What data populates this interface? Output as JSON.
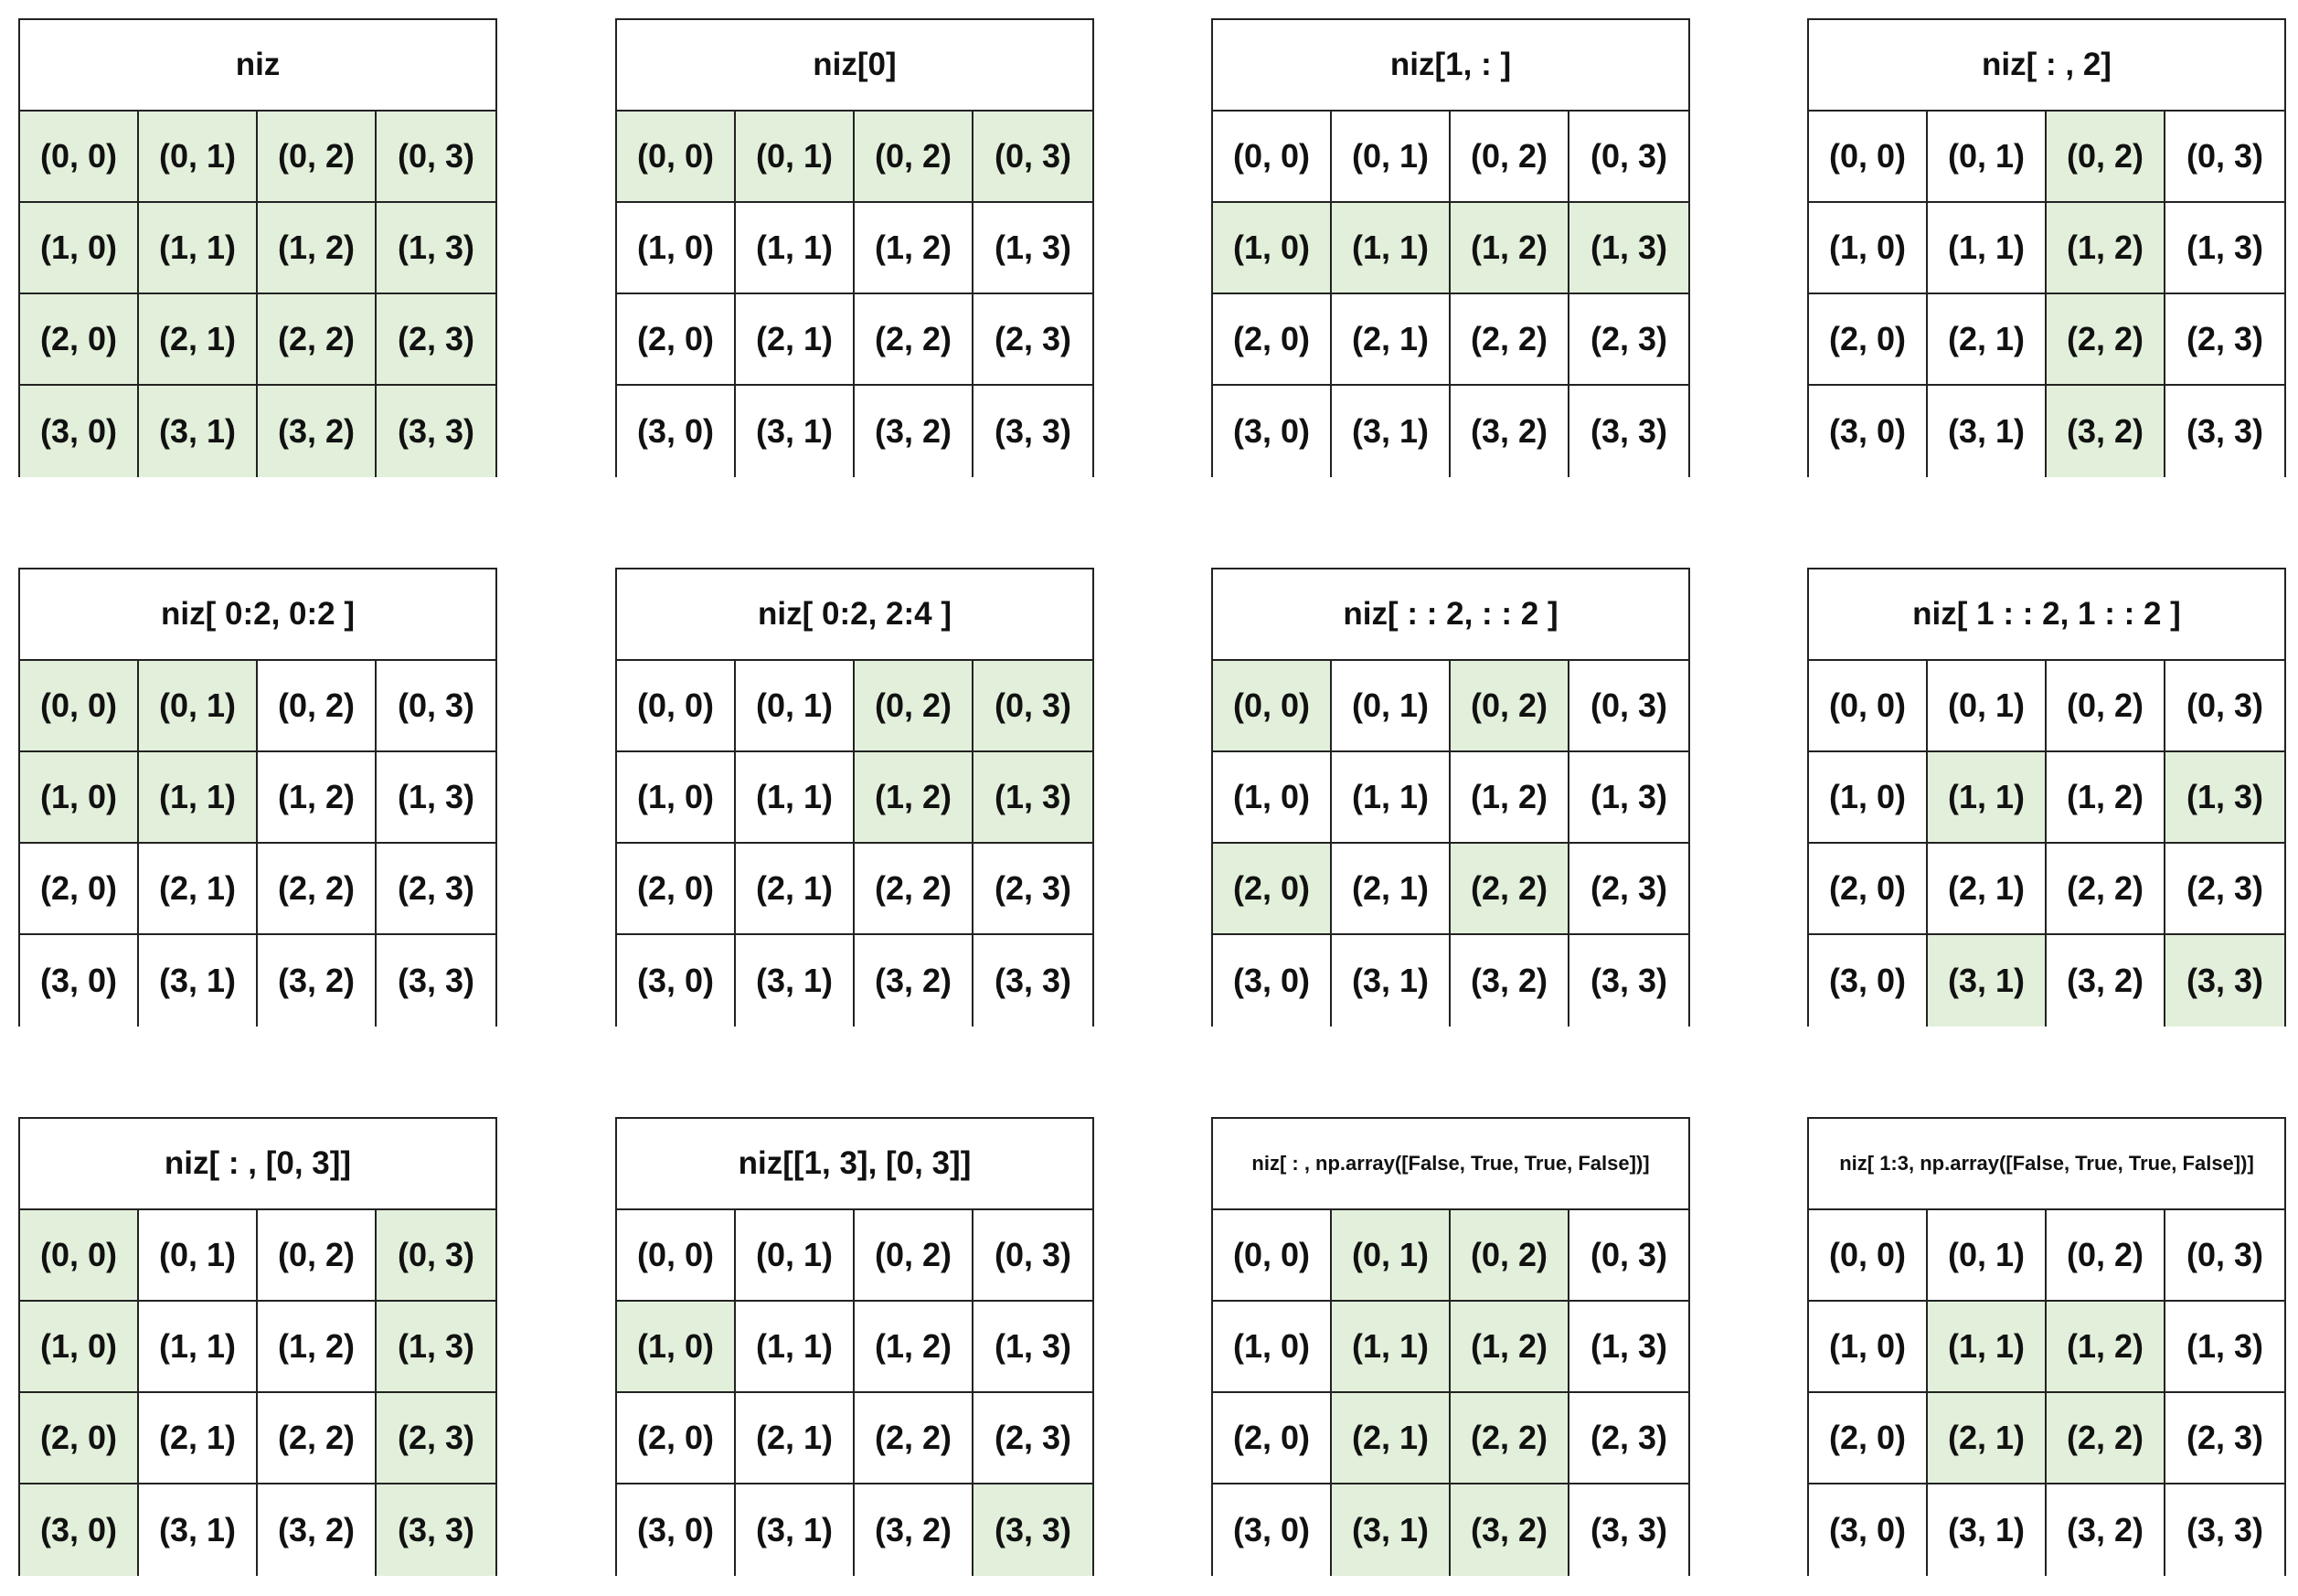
{
  "colors": {
    "highlight": "#e2efda",
    "plain": "#ffffff",
    "border": "#222222",
    "text": "#111111"
  },
  "cell_labels": [
    [
      "(0, 0)",
      "(0, 1)",
      "(0, 2)",
      "(0, 3)"
    ],
    [
      "(1, 0)",
      "(1, 1)",
      "(1, 2)",
      "(1, 3)"
    ],
    [
      "(2, 0)",
      "(2, 1)",
      "(2, 2)",
      "(2, 3)"
    ],
    [
      "(3, 0)",
      "(3, 1)",
      "(3, 2)",
      "(3, 3)"
    ]
  ],
  "panels": [
    {
      "title": "niz",
      "highlight": [
        [
          0,
          0
        ],
        [
          0,
          1
        ],
        [
          0,
          2
        ],
        [
          0,
          3
        ],
        [
          1,
          0
        ],
        [
          1,
          1
        ],
        [
          1,
          2
        ],
        [
          1,
          3
        ],
        [
          2,
          0
        ],
        [
          2,
          1
        ],
        [
          2,
          2
        ],
        [
          2,
          3
        ],
        [
          3,
          0
        ],
        [
          3,
          1
        ],
        [
          3,
          2
        ],
        [
          3,
          3
        ]
      ]
    },
    {
      "title": "niz[0]",
      "highlight": [
        [
          0,
          0
        ],
        [
          0,
          1
        ],
        [
          0,
          2
        ],
        [
          0,
          3
        ]
      ]
    },
    {
      "title": "niz[1, : ]",
      "highlight": [
        [
          1,
          0
        ],
        [
          1,
          1
        ],
        [
          1,
          2
        ],
        [
          1,
          3
        ]
      ]
    },
    {
      "title": "niz[ : , 2]",
      "highlight": [
        [
          0,
          2
        ],
        [
          1,
          2
        ],
        [
          2,
          2
        ],
        [
          3,
          2
        ]
      ]
    },
    {
      "title": "niz[ 0:2, 0:2 ]",
      "highlight": [
        [
          0,
          0
        ],
        [
          0,
          1
        ],
        [
          1,
          0
        ],
        [
          1,
          1
        ]
      ]
    },
    {
      "title": "niz[ 0:2, 2:4 ]",
      "highlight": [
        [
          0,
          2
        ],
        [
          0,
          3
        ],
        [
          1,
          2
        ],
        [
          1,
          3
        ]
      ]
    },
    {
      "title": "niz[ : : 2, : : 2 ]",
      "highlight": [
        [
          0,
          0
        ],
        [
          0,
          2
        ],
        [
          2,
          0
        ],
        [
          2,
          2
        ]
      ]
    },
    {
      "title": "niz[ 1 : : 2, 1 : : 2 ]",
      "highlight": [
        [
          1,
          1
        ],
        [
          1,
          3
        ],
        [
          3,
          1
        ],
        [
          3,
          3
        ]
      ]
    },
    {
      "title": "niz[ : , [0, 3]]",
      "highlight": [
        [
          0,
          0
        ],
        [
          0,
          3
        ],
        [
          1,
          0
        ],
        [
          1,
          3
        ],
        [
          2,
          0
        ],
        [
          2,
          3
        ],
        [
          3,
          0
        ],
        [
          3,
          3
        ]
      ]
    },
    {
      "title": "niz[[1, 3], [0, 3]]",
      "highlight": [
        [
          1,
          0
        ],
        [
          3,
          3
        ]
      ]
    },
    {
      "title": "niz[ : , np.array([False, True, True, False])]",
      "small": true,
      "highlight": [
        [
          0,
          1
        ],
        [
          0,
          2
        ],
        [
          1,
          1
        ],
        [
          1,
          2
        ],
        [
          2,
          1
        ],
        [
          2,
          2
        ],
        [
          3,
          1
        ],
        [
          3,
          2
        ]
      ]
    },
    {
      "title": "niz[ 1:3, np.array([False, True, True, False])]",
      "small": true,
      "highlight": [
        [
          1,
          1
        ],
        [
          1,
          2
        ],
        [
          2,
          1
        ],
        [
          2,
          2
        ]
      ]
    }
  ]
}
